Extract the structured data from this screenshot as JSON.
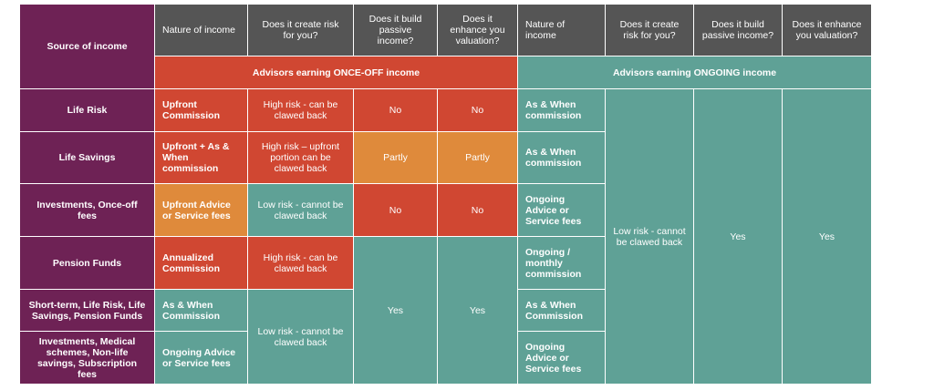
{
  "header": {
    "source": "Source of income",
    "nature": "Nature of income",
    "risk": "Does it create risk for you?",
    "passive": "Does it build passive income?",
    "valuation": "Does it enhance you valuation?"
  },
  "bands": {
    "once_off": "Advisors earning ONCE-OFF income",
    "ongoing": "Advisors earning ONGOING income"
  },
  "rows": [
    {
      "source": "Life Risk",
      "once_nature": "Upfront Commission",
      "once_risk": "High risk - can be clawed back",
      "once_passive": "No",
      "once_valuation": "No",
      "ong_nature": "As & When commission"
    },
    {
      "source": "Life Savings",
      "once_nature": "Upfront + As & When commission",
      "once_risk": "High risk – upfront portion can be clawed back",
      "once_passive": "Partly",
      "once_valuation": "Partly",
      "ong_nature": "As & When commission"
    },
    {
      "source": "Investments, Once-off fees",
      "once_nature": "Upfront Advice or Service fees",
      "once_risk": "Low risk - cannot be clawed back",
      "once_passive": "No",
      "once_valuation": "No",
      "ong_nature": "Ongoing Advice or Service fees"
    },
    {
      "source": "Pension Funds",
      "once_nature": "Annualized Commission",
      "once_risk": "High risk - can be clawed back",
      "ong_nature": "Ongoing / monthly commission"
    },
    {
      "source": "Short-term, Life Risk, Life Savings, Pension Funds",
      "once_nature": "As & When Commission",
      "ong_nature": "As & When Commission"
    },
    {
      "source": "Investments, Medical schemes, Non-life savings, Subscription fees",
      "once_nature": "Ongoing Advice or Service fees",
      "ong_nature": "Ongoing Advice or Service fees"
    }
  ],
  "merged": {
    "once_low_risk": "Low risk - cannot be clawed back",
    "once_passive_yes": "Yes",
    "once_valuation_yes": "Yes",
    "ong_risk": "Low risk - cannot be clawed back",
    "ong_passive": "Yes",
    "ong_valuation": "Yes"
  },
  "colors": {
    "purple": "#6e2255",
    "gray": "#555555",
    "red": "#d04732",
    "orange": "#df8a3b",
    "teal": "#5fa196"
  }
}
